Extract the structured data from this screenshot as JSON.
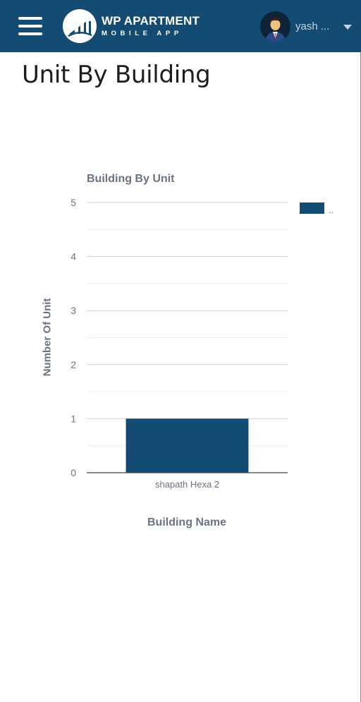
{
  "header": {
    "brand_title": "WP APARTMENT",
    "brand_subtitle": "MOBILE APP",
    "user_name": "yash ...",
    "background_color": "#134b72"
  },
  "page": {
    "title": "Unit By Building"
  },
  "chart_data": {
    "type": "bar",
    "title": "Building By Unit",
    "xlabel": "Building Name",
    "ylabel": "Number Of Unit",
    "categories": [
      "shapath Hexa 2"
    ],
    "series": [
      {
        "name": "..",
        "values": [
          1
        ],
        "color": "#134b72"
      }
    ],
    "ylim": [
      0,
      5
    ],
    "yticks": [
      0,
      1,
      2,
      3,
      4,
      5
    ],
    "grid": true,
    "legend": "top-right"
  }
}
